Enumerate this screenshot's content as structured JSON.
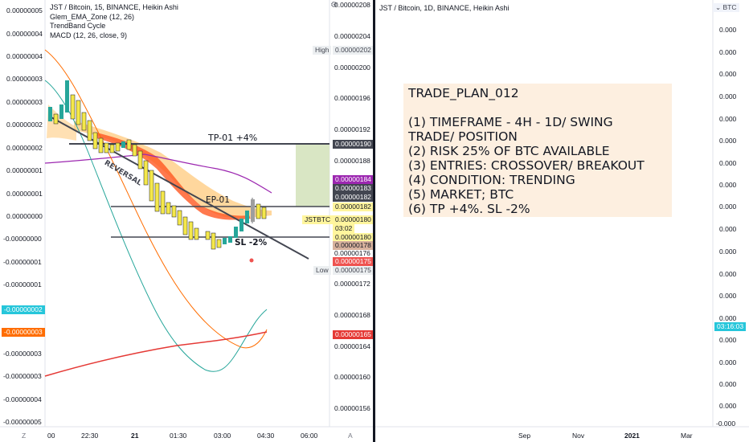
{
  "left_pane": {
    "title": "JST / Bitcoin, 15, BINANCE, Heikin Ashi",
    "indicators": [
      "Glem_EMA_Zone (12, 26)",
      "TrendBand Cycle",
      "MACD (12, 26, close, 9)"
    ],
    "left_axis": [
      "0.00000005",
      "0.00000004",
      "0.00000004",
      "0.00000003",
      "0.00000003",
      "0.00000002",
      "0.00000002",
      "0.00000001",
      "0.00000001",
      "0.00000000",
      "-0.00000000",
      "-0.00000001",
      "-0.00000001",
      "-0.00000002",
      "-0.00000003",
      "-0.00000003",
      "-0.00000004",
      "-0.00000004",
      "-0.00000005"
    ],
    "macd_tag": "-0.00000002",
    "signal_tag": "-0.00000003",
    "right_axis": [
      "0.00000208",
      "0.00000204",
      "0.00000200",
      "0.00000196",
      "0.00000192",
      "0.00000188",
      "0.00000176",
      "0.00000172",
      "0.00000168",
      "0.00000164",
      "0.00000160",
      "0.00000156"
    ],
    "high_label": "High",
    "high_value": "0.00000202",
    "low_label": "Low",
    "low_value": "0.00000175",
    "price_tags": {
      "tp": "0.00000190",
      "p184": "0.00000184",
      "p183": "0.00000183",
      "p182a": "0.00000182",
      "p182b": "0.00000182",
      "symbol": "JSTBTC",
      "current": "0.00000180",
      "countdown": "03:02",
      "p180": "0.00000180",
      "p178": "0.00000178",
      "p175": "0.00000175",
      "p165": "0.00000165"
    },
    "annotations": {
      "tp": "TP-01 +4%",
      "ep": "EP-01",
      "sl": "SL -2%",
      "reversal": "REVERSAL"
    },
    "time_axis": [
      "00",
      "22:30",
      "21",
      "01:30",
      "03:00",
      "04:30",
      "06:00"
    ],
    "z_button": "Z",
    "a_button": "A"
  },
  "right_pane": {
    "title": "JST / Bitcoin, 1D, BINANCE, Heikin Ashi",
    "currency": "BTC",
    "axis": [
      "0.000",
      "0.000",
      "0.000",
      "0.000",
      "0.000",
      "0.000",
      "0.000",
      "0.000",
      "0.000",
      "0.000",
      "0.000",
      "0.000",
      "0.000",
      "0.000",
      "0.000",
      "0.000",
      "0.000",
      "0.000",
      "-0.000"
    ],
    "countdown_tag": "03:16:03",
    "time_axis": [
      "Sep",
      "Nov",
      "2021",
      "Mar"
    ]
  },
  "trade_plan": {
    "lines": [
      "TRADE_PLAN_012",
      "",
      "(1) TIMEFRAME - 4H - 1D/ SWING",
      "TRADE/ POSITION",
      "(2) RISK 25% OF BTC AVAILABLE",
      "(3) ENTRIES: CROSSOVER/ BREAKOUT",
      "(4) CONDITION: TRENDING",
      "(5) MARKET; BTC",
      "(6)  TP +4%. SL -2%"
    ]
  },
  "colors": {
    "bull": "#26a69a",
    "bear": "#f5e84a",
    "tp": "#d9e9c8",
    "sl_tag": "#ef5350",
    "purple": "#9c27b0",
    "orange": "#ff6d00",
    "red": "#e53935",
    "teal": "#26a69a"
  }
}
